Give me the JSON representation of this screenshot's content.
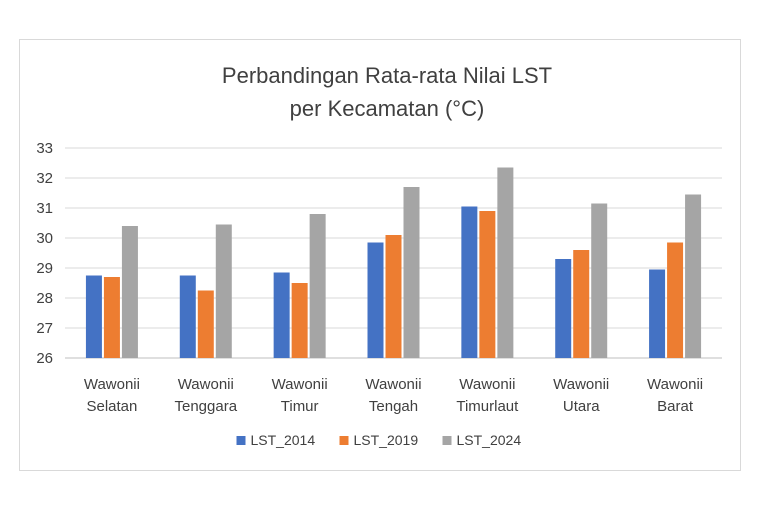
{
  "chart_data": {
    "type": "bar",
    "title_lines": [
      "Perbandingan Rata-rata Nilai LST",
      "per Kecamatan (°C)"
    ],
    "categories": [
      [
        "Wawonii",
        "Selatan"
      ],
      [
        "Wawonii",
        "Tenggara"
      ],
      [
        "Wawonii",
        "Timur"
      ],
      [
        "Wawonii",
        "Tengah"
      ],
      [
        "Wawonii",
        "Timurlaut"
      ],
      [
        "Wawonii",
        "Utara"
      ],
      [
        "Wawonii",
        "Barat"
      ]
    ],
    "series": [
      {
        "name": "LST_2014",
        "color": "#4472C4",
        "values": [
          28.75,
          28.75,
          28.85,
          29.85,
          31.05,
          29.3,
          28.95
        ]
      },
      {
        "name": "LST_2019",
        "color": "#ED7D31",
        "values": [
          28.7,
          28.25,
          28.5,
          30.1,
          30.9,
          29.6,
          29.85
        ]
      },
      {
        "name": "LST_2024",
        "color": "#A5A5A5",
        "values": [
          30.4,
          30.45,
          30.8,
          31.7,
          32.35,
          31.15,
          31.45
        ]
      }
    ],
    "yticks": [
      "26",
      "27",
      "28",
      "29",
      "30",
      "31",
      "32",
      "33"
    ],
    "ylim": [
      26,
      33
    ],
    "grid": true,
    "legend_position": "bottom"
  }
}
